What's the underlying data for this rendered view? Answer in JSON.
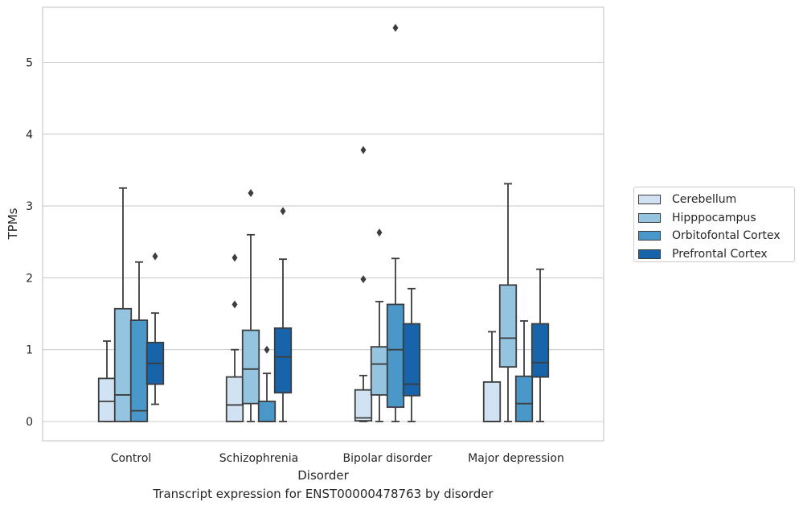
{
  "chart_data": {
    "type": "box",
    "xlabel": "Disorder",
    "ylabel": "TPMs",
    "caption": "Transcript expression for ENST00000478763 by disorder",
    "ylim": [
      -0.27,
      5.75
    ],
    "yticks": [
      0,
      1,
      2,
      3,
      4,
      5
    ],
    "yticklabels": [
      "0",
      "1",
      "2",
      "3",
      "4",
      "5"
    ],
    "grid": "horizontal",
    "legend_position": "right",
    "categories": [
      "Control",
      "Schizophrenia",
      "Bipolar disorder",
      "Major depression"
    ],
    "series": [
      {
        "name": "Cerebellum",
        "color": "#d1e3f2",
        "boxes": [
          {
            "whisker_low": 0,
            "q1": 0,
            "median": 0.28,
            "q3": 0.6,
            "whisker_high": 1.12,
            "outliers": []
          },
          {
            "whisker_low": 0,
            "q1": 0,
            "median": 0.23,
            "q3": 0.62,
            "whisker_high": 1.0,
            "outliers": [
              1.63,
              2.28
            ]
          },
          {
            "whisker_low": 0,
            "q1": 0.01,
            "median": 0.05,
            "q3": 0.44,
            "whisker_high": 0.64,
            "outliers": [
              1.98,
              3.78
            ]
          },
          {
            "whisker_low": 0,
            "q1": 0,
            "median": 0,
            "q3": 0.55,
            "whisker_high": 1.25,
            "outliers": []
          }
        ]
      },
      {
        "name": "Hipppocampus",
        "color": "#94c4df",
        "boxes": [
          {
            "whisker_low": 0,
            "q1": 0,
            "median": 0.37,
            "q3": 1.57,
            "whisker_high": 3.25,
            "outliers": []
          },
          {
            "whisker_low": 0,
            "q1": 0.25,
            "median": 0.73,
            "q3": 1.27,
            "whisker_high": 2.6,
            "outliers": [
              3.18
            ]
          },
          {
            "whisker_low": 0,
            "q1": 0.37,
            "median": 0.8,
            "q3": 1.04,
            "whisker_high": 1.67,
            "outliers": [
              2.63
            ]
          },
          {
            "whisker_low": 0,
            "q1": 0.76,
            "median": 1.16,
            "q3": 1.9,
            "whisker_high": 3.31,
            "outliers": []
          }
        ]
      },
      {
        "name": "Orbitofontal Cortex",
        "color": "#4a98c9",
        "boxes": [
          {
            "whisker_low": 0,
            "q1": 0,
            "median": 0.15,
            "q3": 1.41,
            "whisker_high": 2.22,
            "outliers": []
          },
          {
            "whisker_low": 0,
            "q1": 0,
            "median": 0,
            "q3": 0.28,
            "whisker_high": 0.67,
            "outliers": [
              1.0
            ]
          },
          {
            "whisker_low": 0,
            "q1": 0.2,
            "median": 1.0,
            "q3": 1.63,
            "whisker_high": 2.27,
            "outliers": [
              5.48
            ]
          },
          {
            "whisker_low": 0,
            "q1": 0,
            "median": 0.25,
            "q3": 0.63,
            "whisker_high": 1.4,
            "outliers": []
          }
        ]
      },
      {
        "name": "Prefrontal Cortex",
        "color": "#1764ab",
        "boxes": [
          {
            "whisker_low": 0.24,
            "q1": 0.52,
            "median": 0.81,
            "q3": 1.1,
            "whisker_high": 1.51,
            "outliers": [
              2.3
            ]
          },
          {
            "whisker_low": 0,
            "q1": 0.4,
            "median": 0.9,
            "q3": 1.3,
            "whisker_high": 2.26,
            "outliers": [
              2.93
            ]
          },
          {
            "whisker_low": 0,
            "q1": 0.36,
            "median": 0.52,
            "q3": 1.36,
            "whisker_high": 1.85,
            "outliers": []
          },
          {
            "whisker_low": 0,
            "q1": 0.62,
            "median": 0.82,
            "q3": 1.36,
            "whisker_high": 2.12,
            "outliers": []
          }
        ]
      }
    ]
  },
  "legend": {
    "items": [
      {
        "label": "Cerebellum",
        "color": "#d1e3f2"
      },
      {
        "label": "Hipppocampus",
        "color": "#94c4df"
      },
      {
        "label": "Orbitofontal Cortex",
        "color": "#4a98c9"
      },
      {
        "label": "Prefrontal Cortex",
        "color": "#1764ab"
      }
    ]
  }
}
